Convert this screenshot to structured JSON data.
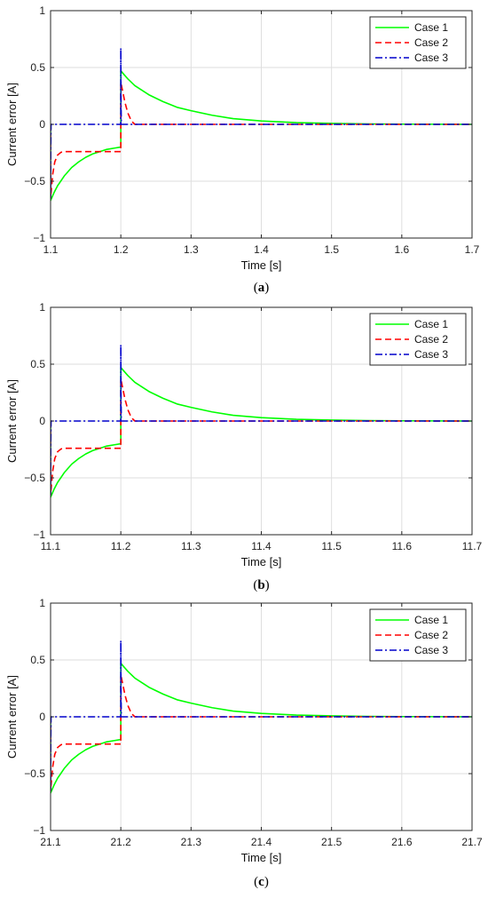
{
  "chart_data": [
    {
      "type": "line",
      "caption": "a",
      "xlabel": "Time [s]",
      "ylabel": "Current error [A]",
      "xlim": [
        1.1,
        1.7
      ],
      "ylim": [
        -1,
        1
      ],
      "xticks": [
        1.1,
        1.2,
        1.3,
        1.4,
        1.5,
        1.6,
        1.7
      ],
      "xtick_labels": [
        "1.1",
        "1.2",
        "1.3",
        "1.4",
        "1.5",
        "1.6",
        "1.7"
      ],
      "yticks": [
        -1,
        -0.5,
        0,
        0.5,
        1
      ],
      "ytick_labels": [
        "−1",
        "−0.5",
        "0",
        "0.5",
        "1"
      ],
      "grid": true,
      "legend_position": "top-right",
      "series": [
        {
          "name": "Case 1",
          "color": "#00ff00",
          "style": "solid",
          "x": [
            1.1,
            1.1,
            1.105,
            1.11,
            1.12,
            1.13,
            1.14,
            1.15,
            1.16,
            1.17,
            1.18,
            1.19,
            1.2,
            1.2,
            1.21,
            1.22,
            1.24,
            1.26,
            1.28,
            1.3,
            1.33,
            1.36,
            1.4,
            1.45,
            1.5,
            1.55,
            1.6,
            1.65,
            1.7
          ],
          "y": [
            0,
            -0.67,
            -0.6,
            -0.54,
            -0.45,
            -0.38,
            -0.33,
            -0.29,
            -0.26,
            -0.24,
            -0.22,
            -0.21,
            -0.2,
            0.47,
            0.4,
            0.34,
            0.26,
            0.2,
            0.15,
            0.12,
            0.08,
            0.05,
            0.03,
            0.015,
            0.008,
            0.004,
            0.002,
            0.001,
            0
          ]
        },
        {
          "name": "Case 2",
          "color": "#ff0000",
          "style": "dashed",
          "x": [
            1.1,
            1.1,
            1.103,
            1.106,
            1.11,
            1.115,
            1.12,
            1.15,
            1.2,
            1.2,
            1.203,
            1.206,
            1.21,
            1.215,
            1.22,
            1.25,
            1.7
          ],
          "y": [
            0,
            -0.65,
            -0.44,
            -0.33,
            -0.27,
            -0.245,
            -0.24,
            -0.24,
            -0.24,
            0.37,
            0.28,
            0.19,
            0.1,
            0.03,
            0,
            0,
            0
          ]
        },
        {
          "name": "Case 3",
          "color": "#0000cc",
          "style": "dashdot",
          "x": [
            1.1,
            1.1,
            1.1003,
            1.1007,
            1.2,
            1.2,
            1.2003,
            1.2007,
            1.7
          ],
          "y": [
            0,
            -0.65,
            -0.2,
            0,
            0,
            0.67,
            0.2,
            0,
            0
          ]
        }
      ]
    },
    {
      "type": "line",
      "caption": "b",
      "xlabel": "Time [s]",
      "ylabel": "Current error [A]",
      "xlim": [
        11.1,
        11.7
      ],
      "ylim": [
        -1,
        1
      ],
      "xticks": [
        11.1,
        11.2,
        11.3,
        11.4,
        11.5,
        11.6,
        11.7
      ],
      "xtick_labels": [
        "11.1",
        "11.2",
        "11.3",
        "11.4",
        "11.5",
        "11.6",
        "11.7"
      ],
      "yticks": [
        -1,
        -0.5,
        0,
        0.5,
        1
      ],
      "ytick_labels": [
        "−1",
        "−0.5",
        "0",
        "0.5",
        "1"
      ],
      "grid": true,
      "legend_position": "top-right",
      "series": [
        {
          "name": "Case 1",
          "color": "#00ff00",
          "style": "solid",
          "x": [
            11.1,
            11.1,
            11.105,
            11.11,
            11.12,
            11.13,
            11.14,
            11.15,
            11.16,
            11.17,
            11.18,
            11.19,
            11.2,
            11.2,
            11.21,
            11.22,
            11.24,
            11.26,
            11.28,
            11.3,
            11.33,
            11.36,
            11.4,
            11.45,
            11.5,
            11.55,
            11.6,
            11.65,
            11.7
          ],
          "y": [
            0,
            -0.67,
            -0.6,
            -0.54,
            -0.45,
            -0.38,
            -0.33,
            -0.29,
            -0.26,
            -0.24,
            -0.22,
            -0.21,
            -0.2,
            0.47,
            0.4,
            0.34,
            0.26,
            0.2,
            0.15,
            0.12,
            0.08,
            0.05,
            0.03,
            0.015,
            0.008,
            0.004,
            0.002,
            0.001,
            0
          ]
        },
        {
          "name": "Case 2",
          "color": "#ff0000",
          "style": "dashed",
          "x": [
            11.1,
            11.1,
            11.103,
            11.106,
            11.11,
            11.115,
            11.12,
            11.15,
            11.2,
            11.2,
            11.203,
            11.206,
            11.21,
            11.215,
            11.22,
            11.25,
            11.7
          ],
          "y": [
            0,
            -0.65,
            -0.44,
            -0.33,
            -0.27,
            -0.245,
            -0.24,
            -0.24,
            -0.24,
            0.37,
            0.28,
            0.19,
            0.1,
            0.03,
            0,
            0,
            0
          ]
        },
        {
          "name": "Case 3",
          "color": "#0000cc",
          "style": "dashdot",
          "x": [
            11.1,
            11.1,
            11.1003,
            11.1007,
            11.2,
            11.2,
            11.2003,
            11.2007,
            11.7
          ],
          "y": [
            0,
            -0.65,
            -0.2,
            0,
            0,
            0.67,
            0.2,
            0,
            0
          ]
        }
      ]
    },
    {
      "type": "line",
      "caption": "c",
      "xlabel": "Time [s]",
      "ylabel": "Current error [A]",
      "xlim": [
        21.1,
        21.7
      ],
      "ylim": [
        -1,
        1
      ],
      "xticks": [
        21.1,
        21.2,
        21.3,
        21.4,
        21.5,
        21.6,
        21.7
      ],
      "xtick_labels": [
        "21.1",
        "21.2",
        "21.3",
        "21.4",
        "21.5",
        "21.6",
        "21.7"
      ],
      "yticks": [
        -1,
        -0.5,
        0,
        0.5,
        1
      ],
      "ytick_labels": [
        "−1",
        "−0.5",
        "0",
        "0.5",
        "1"
      ],
      "grid": true,
      "legend_position": "top-right",
      "series": [
        {
          "name": "Case 1",
          "color": "#00ff00",
          "style": "solid",
          "x": [
            21.1,
            21.1,
            21.105,
            21.11,
            21.12,
            21.13,
            21.14,
            21.15,
            21.16,
            21.17,
            21.18,
            21.19,
            21.2,
            21.2,
            21.21,
            21.22,
            21.24,
            21.26,
            21.28,
            21.3,
            21.33,
            21.36,
            21.4,
            21.45,
            21.5,
            21.55,
            21.6,
            21.65,
            21.7
          ],
          "y": [
            0,
            -0.67,
            -0.6,
            -0.54,
            -0.45,
            -0.38,
            -0.33,
            -0.29,
            -0.26,
            -0.24,
            -0.22,
            -0.21,
            -0.2,
            0.47,
            0.4,
            0.34,
            0.26,
            0.2,
            0.15,
            0.12,
            0.08,
            0.05,
            0.03,
            0.015,
            0.008,
            0.004,
            0.002,
            0.001,
            0
          ]
        },
        {
          "name": "Case 2",
          "color": "#ff0000",
          "style": "dashed",
          "x": [
            21.1,
            21.1,
            21.103,
            21.106,
            21.11,
            21.115,
            21.12,
            21.15,
            21.2,
            21.2,
            21.203,
            21.206,
            21.21,
            21.215,
            21.22,
            21.25,
            21.7
          ],
          "y": [
            0,
            -0.65,
            -0.44,
            -0.33,
            -0.27,
            -0.245,
            -0.24,
            -0.24,
            -0.24,
            0.37,
            0.28,
            0.19,
            0.1,
            0.03,
            0,
            0,
            0
          ]
        },
        {
          "name": "Case 3",
          "color": "#0000cc",
          "style": "dashdot",
          "x": [
            21.1,
            21.1,
            21.1003,
            21.1007,
            21.2,
            21.2,
            21.2003,
            21.2007,
            21.7
          ],
          "y": [
            0,
            -0.65,
            -0.2,
            0,
            0,
            0.67,
            0.2,
            0,
            0
          ]
        }
      ]
    }
  ]
}
